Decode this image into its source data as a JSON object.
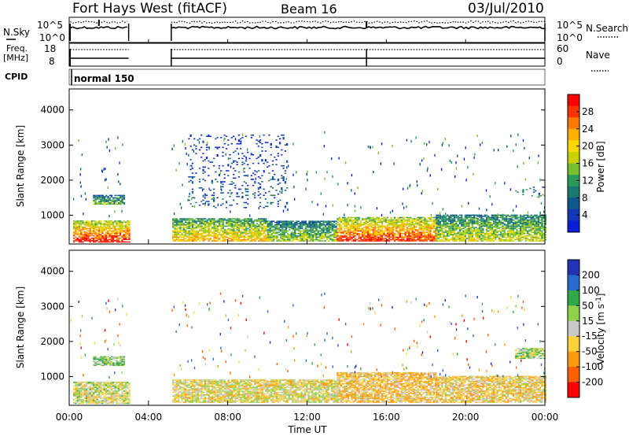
{
  "header": {
    "station": "Fort Hays West (fitACF)",
    "beam": "Beam 16",
    "date": "03/Jul/2010"
  },
  "top_panels": {
    "nsky_label": "N.Sky",
    "nsearch_label": "N.Search",
    "noise_ticks": [
      "10^5",
      "10^0"
    ],
    "freq_label_1": "Freq.",
    "freq_label_2": "[MHz]",
    "freq_ticks": [
      "18",
      "8"
    ],
    "nave_label": "Nave",
    "nave_ticks": [
      "60",
      "0"
    ],
    "cpid_label": "CPID",
    "cpid_value": "normal 150"
  },
  "colorbars": {
    "power": {
      "label": "Power [dB]",
      "ticks": [
        "28",
        "24",
        "20",
        "16",
        "12",
        "8",
        "4"
      ],
      "colors": [
        "#ff0000",
        "#ff3300",
        "#ff7a00",
        "#ffb000",
        "#ffd800",
        "#c8d200",
        "#78bf30",
        "#2a9a5a",
        "#1a7a70",
        "#0d5a8a",
        "#1438b8",
        "#0a1ed8"
      ]
    },
    "velocity": {
      "label": "Velocity [m s",
      "label_sup": "-1",
      "label_end": "]",
      "ticks": [
        "200",
        "100",
        "50",
        "15",
        "-15",
        "-50",
        "-100",
        "-200"
      ],
      "colors": [
        "#2432b4",
        "#2a6acc",
        "#2fa84a",
        "#8fd24a",
        "#c8c8c8",
        "#ffd23a",
        "#ff9a10",
        "#ff6000",
        "#ff0000"
      ]
    }
  },
  "axes": {
    "ylabel": "Slant Range [km]",
    "yticks": [
      "4000",
      "3000",
      "2000",
      "1000"
    ],
    "xlabel": "Time UT",
    "xticks": [
      "00:00",
      "04:00",
      "08:00",
      "12:00",
      "16:00",
      "20:00",
      "00:00"
    ]
  },
  "chart_data": [
    {
      "type": "heatmap",
      "title": "Power [dB]",
      "xlabel": "",
      "ylabel": "Slant Range [km]",
      "x_range": [
        "00:00",
        "24:00"
      ],
      "ylim": [
        180,
        4600
      ],
      "data_gap": [
        "03:00",
        "05:10"
      ],
      "clusters": [
        {
          "t0": 0.2,
          "t1": 3.0,
          "r0": 220,
          "r1": 820,
          "level": 0.85
        },
        {
          "t0": 1.2,
          "t1": 2.8,
          "r0": 1300,
          "r1": 1550,
          "level": 0.4
        },
        {
          "t0": 5.2,
          "t1": 10.0,
          "r0": 250,
          "r1": 900,
          "level": 0.6
        },
        {
          "t0": 10.0,
          "t1": 13.5,
          "r0": 250,
          "r1": 820,
          "level": 0.45
        },
        {
          "t0": 13.5,
          "t1": 18.5,
          "r0": 250,
          "r1": 950,
          "level": 0.8
        },
        {
          "t0": 18.5,
          "t1": 24.0,
          "r0": 250,
          "r1": 1000,
          "level": 0.5
        },
        {
          "t0": 22.5,
          "t1": 24.0,
          "r0": 1500,
          "r1": 1800,
          "level": 0.3
        },
        {
          "t0": 6.0,
          "t1": 11.0,
          "r0": 1200,
          "r1": 3300,
          "level": 0.15
        }
      ]
    },
    {
      "type": "heatmap",
      "title": "Velocity [m s-1]",
      "xlabel": "Time UT",
      "ylabel": "Slant Range [km]",
      "x_range": [
        "00:00",
        "24:00"
      ],
      "ylim": [
        180,
        4600
      ],
      "data_gap": [
        "03:00",
        "05:10"
      ],
      "clusters": [
        {
          "t0": 0.2,
          "t1": 3.0,
          "r0": 220,
          "r1": 820,
          "mean_velocity": 0
        },
        {
          "t0": 1.2,
          "t1": 2.8,
          "r0": 1300,
          "r1": 1550,
          "mean_velocity": 40
        },
        {
          "t0": 5.2,
          "t1": 13.5,
          "r0": 250,
          "r1": 900,
          "mean_velocity": -10
        },
        {
          "t0": 13.5,
          "t1": 18.5,
          "r0": 250,
          "r1": 1100,
          "mean_velocity": -40
        },
        {
          "t0": 18.5,
          "t1": 24.0,
          "r0": 250,
          "r1": 1000,
          "mean_velocity": -30
        },
        {
          "t0": 22.5,
          "t1": 24.0,
          "r0": 1500,
          "r1": 1800,
          "mean_velocity": 20
        }
      ]
    }
  ]
}
